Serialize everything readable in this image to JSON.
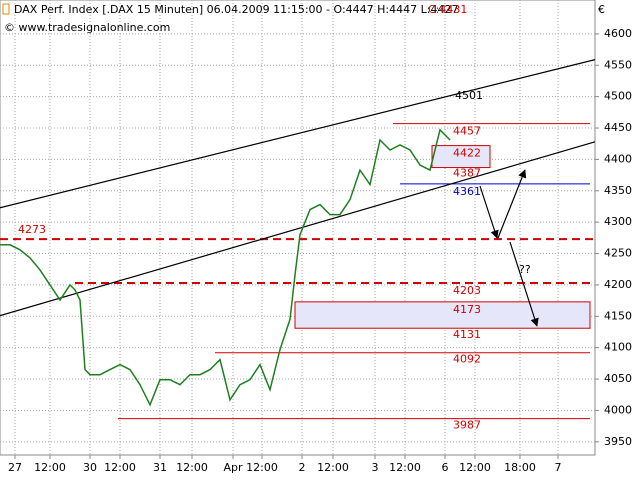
{
  "chart_data": {
    "type": "line",
    "header": "DAX Perf. Index [.DAX  15 Minuten] 06.04.2009 11:15:00 - O:4447 H:4447 L:4427",
    "close": "C:4431",
    "copyright": "© www.tradesignalonline.com",
    "currency": "€",
    "annotation": "??",
    "color": "#1f7f1f",
    "x": [
      0,
      2,
      4,
      6,
      8,
      10,
      12,
      14,
      15,
      16,
      17,
      18,
      20,
      22,
      24,
      26,
      28,
      30,
      32,
      34,
      36,
      38,
      40,
      42,
      44,
      46,
      48,
      50,
      52,
      54,
      56,
      58,
      59,
      60,
      62,
      64,
      66,
      68,
      70,
      72,
      74,
      76,
      78,
      80,
      82,
      84,
      86,
      88,
      90
    ],
    "values": [
      4264,
      4264,
      4256,
      4243,
      4224,
      4200,
      4176,
      4200,
      4192,
      4176,
      4065,
      4057,
      4057,
      4065,
      4073,
      4065,
      4041,
      4009,
      4049,
      4049,
      4041,
      4057,
      4057,
      4065,
      4081,
      4017,
      4041,
      4049,
      4073,
      4033,
      4097,
      4145,
      4216,
      4280,
      4320,
      4328,
      4312,
      4312,
      4336,
      4383,
      4360,
      4431,
      4415,
      4423,
      4415,
      4391,
      4383,
      4447,
      4431
    ],
    "xlim": [
      0,
      119
    ],
    "xticks": [
      {
        "value": 3,
        "label": "27"
      },
      {
        "value": 10,
        "label": "12:00"
      },
      {
        "value": 18,
        "label": "30"
      },
      {
        "value": 24,
        "label": "12:00"
      },
      {
        "value": 32,
        "label": "31"
      },
      {
        "value": 38.4,
        "label": "12:00"
      },
      {
        "value": 46.6,
        "label": "Apr"
      },
      {
        "value": 52.4,
        "label": "12:00"
      },
      {
        "value": 60.4,
        "label": "2"
      },
      {
        "value": 66.6,
        "label": "12:00"
      },
      {
        "value": 75,
        "label": "3"
      },
      {
        "value": 81,
        "label": "12:00"
      },
      {
        "value": 89,
        "label": "6"
      },
      {
        "value": 95,
        "label": "12:00"
      },
      {
        "value": 104,
        "label": "18:00"
      },
      {
        "value": 111.6,
        "label": "7"
      }
    ],
    "ylim": [
      3929,
      4654
    ],
    "yticks": [
      3950,
      4000,
      4050,
      4100,
      4150,
      4200,
      4250,
      4300,
      4350,
      4400,
      4450,
      4500,
      4550,
      4600
    ],
    "grid": true,
    "trendlines": [
      {
        "x": [
          0,
          119
        ],
        "y": [
          4323,
          4559
        ]
      },
      {
        "x": [
          0,
          119
        ],
        "y": [
          4151,
          4428
        ]
      }
    ],
    "levels": [
      {
        "value": 4501,
        "color": "#000000"
      },
      {
        "value": 4457,
        "color": "#d00000"
      },
      {
        "value": 4422,
        "color": "#d00000"
      },
      {
        "value": 4387,
        "color": "#d00000"
      },
      {
        "value": 4361,
        "color": "#0000cc"
      },
      {
        "value": 4273,
        "color": "#d00000"
      },
      {
        "value": 4203,
        "color": "#d00000"
      },
      {
        "value": 4173,
        "color": "#d00000"
      },
      {
        "value": 4131,
        "color": "#d00000"
      },
      {
        "value": 4092,
        "color": "#d00000"
      },
      {
        "value": 3987,
        "color": "#d00000"
      }
    ]
  }
}
